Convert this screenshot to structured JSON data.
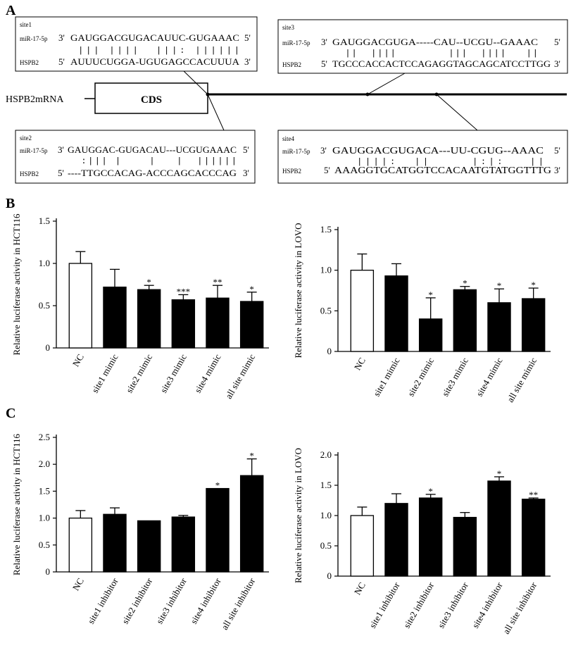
{
  "panels": {
    "a": "A",
    "b": "B",
    "c": "C"
  },
  "diagram": {
    "mrna_label": "HSPB2mRNA",
    "cds_label": "CDS",
    "sites": [
      {
        "title": "site1",
        "mir_label": "miR-17-5p",
        "mir_end3": "3'",
        "mir_seq": "GAUGGACGUGACAUUC-GUGAAAC",
        "mir_end5": "5'",
        "pairing": " ||| ||||  |||: ||||||",
        "target_label": "HSPB2",
        "target_end5": "5'",
        "target_seq": "AUUUCUGGA-UGUGAGCCACUUUA",
        "target_end3": "3'"
      },
      {
        "title": "site2",
        "mir_label": "miR-17-5p",
        "mir_end3": "3'",
        "mir_seq": "GAUGGAC-GUGACAU---UCGUGAAAC",
        "mir_end5": "5'",
        "pairing": "  :||| |    |   |  ||||||",
        "target_label": "HSPB2",
        "target_end5": "5'",
        "target_seq": "----TTGCCACAG-ACCCAGCACCCAG",
        "target_end3": "3'"
      },
      {
        "title": "site3",
        "mir_label": "miR-17-5p",
        "mir_end3": "3'",
        "mir_seq": "GAUGGACGUGA-----CAU--UCGU--GAAAC",
        "mir_end5": "5'",
        "pairing": "  ||  ||||        |||  ||||   ||",
        "target_label": "HSPB2",
        "target_end5": "5'",
        "target_seq": "TGCCCACCACTCCAGAGGTAGCAGCATCCTTGG",
        "target_end3": "3'"
      },
      {
        "title": "site4",
        "mir_label": "miR-17-5p",
        "mir_end3": "3'",
        "mir_seq": "GAUGGACGUGACA---UU-CGUG--AAAC",
        "mir_end5": "5'",
        "pairing": "   ||||:  ||     |:|:   ||",
        "target_label": "HSPB2",
        "target_end5": "5'",
        "target_seq": "AAAGGTGCATGGTCCACAATGTATGGTTTG",
        "target_end3": "3'"
      }
    ]
  },
  "chart_data": [
    {
      "id": "b-hct116",
      "type": "bar",
      "ylabel": "Relative luciferase activity in HCT116",
      "ylim": [
        0,
        1.5
      ],
      "yticks": [
        "0",
        "0.5",
        "1.0",
        "1.5"
      ],
      "ytick_values": [
        0,
        0.5,
        1.0,
        1.5
      ],
      "categories": [
        "NC",
        "site1 mimic",
        "site2 mimic",
        "site3 mimic",
        "site4 mimic",
        "all site mimic"
      ],
      "values": [
        1.0,
        0.72,
        0.69,
        0.57,
        0.59,
        0.55
      ],
      "errors": [
        0.14,
        0.21,
        0.05,
        0.06,
        0.15,
        0.11
      ],
      "significance": [
        "",
        "",
        "*",
        "***",
        "**",
        "*"
      ],
      "fills": [
        "#ffffff",
        "#000000",
        "#000000",
        "#000000",
        "#000000",
        "#000000"
      ]
    },
    {
      "id": "b-lovo",
      "type": "bar",
      "ylabel": "Relative luciferase activity in LOVO",
      "ylim": [
        0,
        1.5
      ],
      "yticks": [
        "0",
        "0.5",
        "1.0",
        "1.5"
      ],
      "ytick_values": [
        0,
        0.5,
        1.0,
        1.5
      ],
      "categories": [
        "NC",
        "site1 mimic",
        "site2 mimic",
        "site3 mimic",
        "site4 mimic",
        "all site mimic"
      ],
      "values": [
        1.0,
        0.93,
        0.4,
        0.76,
        0.6,
        0.65
      ],
      "errors": [
        0.2,
        0.15,
        0.26,
        0.04,
        0.17,
        0.13
      ],
      "significance": [
        "",
        "",
        "*",
        "*",
        "*",
        "*"
      ],
      "fills": [
        "#ffffff",
        "#000000",
        "#000000",
        "#000000",
        "#000000",
        "#000000"
      ]
    },
    {
      "id": "c-hct116",
      "type": "bar",
      "ylabel": "Relative luciferase activity in HCT116",
      "ylim": [
        0,
        2.5
      ],
      "yticks": [
        "0",
        "0.5",
        "1.0",
        "1.5",
        "2.0",
        "2.5"
      ],
      "ytick_values": [
        0,
        0.5,
        1.0,
        1.5,
        2.0,
        2.5
      ],
      "categories": [
        "NC",
        "site1 inhibitor",
        "site2 inhibitor",
        "site3 inhibitor",
        "site4 inhibitor",
        "all site inhibitor"
      ],
      "values": [
        1.0,
        1.07,
        0.95,
        1.02,
        1.55,
        1.79
      ],
      "errors": [
        0.14,
        0.12,
        0.0,
        0.03,
        0.0,
        0.31
      ],
      "significance": [
        "",
        "",
        "",
        "",
        "*",
        "*"
      ],
      "fills": [
        "#ffffff",
        "#000000",
        "#000000",
        "#000000",
        "#000000",
        "#000000"
      ]
    },
    {
      "id": "c-lovo",
      "type": "bar",
      "ylabel": "Relative luciferase activity in LOVO",
      "ylim": [
        0,
        2.0
      ],
      "yticks": [
        "0",
        "0.5",
        "1.0",
        "1.5",
        "2.0"
      ],
      "ytick_values": [
        0,
        0.5,
        1.0,
        1.5,
        2.0
      ],
      "categories": [
        "NC",
        "site1 inhibitor",
        "site2 inhibitor",
        "site3 inhibitor",
        "site4 inhibitor",
        "all site inhibitor"
      ],
      "values": [
        1.0,
        1.2,
        1.29,
        0.97,
        1.57,
        1.27
      ],
      "errors": [
        0.14,
        0.16,
        0.06,
        0.08,
        0.07,
        0.02
      ],
      "significance": [
        "",
        "",
        "*",
        "",
        "*",
        "**"
      ],
      "fills": [
        "#ffffff",
        "#000000",
        "#000000",
        "#000000",
        "#000000",
        "#000000"
      ]
    }
  ]
}
